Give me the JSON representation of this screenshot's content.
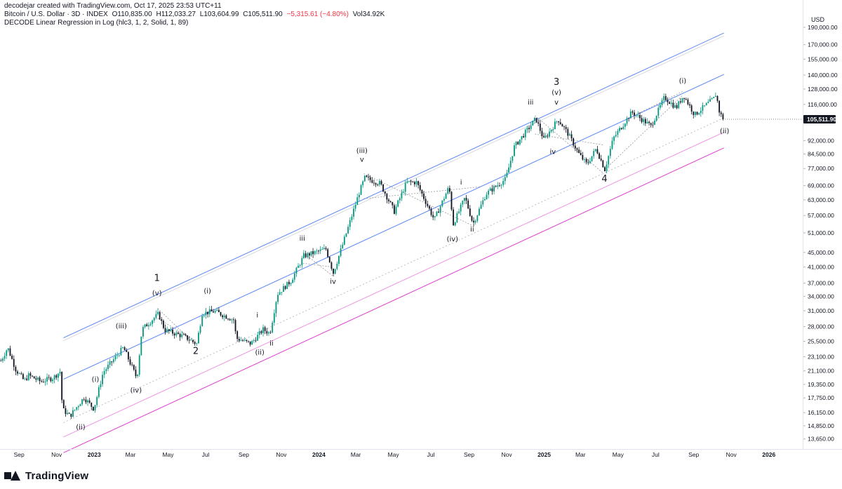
{
  "header": {
    "credit": "decodejar created with TradingView.com, Oct 17, 2025 23:53 UTC+11",
    "symbol": "Bitcoin / U.S. Dollar · 3D · INDEX",
    "open": "O110,835.00",
    "high": "H112,033.27",
    "low": "L103,604.99",
    "close": "C105,511.90",
    "change": "−5,315.61 (−4.80%)",
    "volume": "Vol34.92K",
    "indicator": "DECODE Linear Regression in Log (hlc3, 1, 2, Solid, 1, 89)"
  },
  "footer": {
    "brand": "TradingView"
  },
  "chart_data": {
    "type": "candlestick",
    "currency": "USD",
    "y_scale": "log",
    "ylim": [
      12800,
      205000
    ],
    "y_ticks": [
      190000,
      170000,
      155000,
      140000,
      128000,
      116000,
      92000,
      84500,
      77000,
      69000,
      63000,
      57000,
      51000,
      45000,
      41000,
      37000,
      34000,
      31000,
      28000,
      25500,
      23100,
      21100,
      19350,
      17750,
      16150,
      14850,
      13650
    ],
    "y_tick_labels": [
      "190,000.00",
      "170,000.00",
      "155,000.00",
      "140,000.00",
      "128,000.00",
      "116,000.00",
      "92,000.00",
      "84,500.00",
      "77,000.00",
      "69,000.00",
      "63,000.00",
      "57,000.00",
      "51,000.00",
      "45,000.00",
      "41,000.00",
      "37,000.00",
      "34,000.00",
      "31,000.00",
      "28,000.00",
      "25,500.00",
      "23,100.00",
      "21,100.00",
      "19,350.00",
      "17,750.00",
      "16,150.00",
      "14,850.00",
      "13,650.00"
    ],
    "last_price": 105511.9,
    "last_price_label": "105,511.90",
    "xlim": [
      "2022-08-01",
      "2026-02-25"
    ],
    "x_ticks": [
      {
        "date": "2022-09-01",
        "label": "Sep",
        "bold": false
      },
      {
        "date": "2022-11-01",
        "label": "Nov",
        "bold": false
      },
      {
        "date": "2023-01-01",
        "label": "2023",
        "bold": true
      },
      {
        "date": "2023-03-01",
        "label": "Mar",
        "bold": false
      },
      {
        "date": "2023-05-01",
        "label": "May",
        "bold": false
      },
      {
        "date": "2023-07-01",
        "label": "Jul",
        "bold": false
      },
      {
        "date": "2023-09-01",
        "label": "Sep",
        "bold": false
      },
      {
        "date": "2023-11-01",
        "label": "Nov",
        "bold": false
      },
      {
        "date": "2024-01-01",
        "label": "2024",
        "bold": true
      },
      {
        "date": "2024-03-01",
        "label": "Mar",
        "bold": false
      },
      {
        "date": "2024-05-01",
        "label": "May",
        "bold": false
      },
      {
        "date": "2024-07-01",
        "label": "Jul",
        "bold": false
      },
      {
        "date": "2024-09-01",
        "label": "Sep",
        "bold": false
      },
      {
        "date": "2024-11-01",
        "label": "Nov",
        "bold": false
      },
      {
        "date": "2025-01-01",
        "label": "2025",
        "bold": true
      },
      {
        "date": "2025-03-01",
        "label": "Mar",
        "bold": false
      },
      {
        "date": "2025-05-01",
        "label": "May",
        "bold": false
      },
      {
        "date": "2025-07-01",
        "label": "Jul",
        "bold": false
      },
      {
        "date": "2025-09-01",
        "label": "Sep",
        "bold": false
      },
      {
        "date": "2025-11-01",
        "label": "Nov",
        "bold": false
      },
      {
        "date": "2026-01-01",
        "label": "2026",
        "bold": true
      }
    ],
    "path_keypoints": [
      [
        "2022-08-01",
        22500
      ],
      [
        "2022-08-12",
        24500
      ],
      [
        "2022-08-25",
        21300
      ],
      [
        "2022-09-08",
        19800
      ],
      [
        "2022-09-15",
        20500
      ],
      [
        "2022-10-05",
        19700
      ],
      [
        "2022-10-25",
        20200
      ],
      [
        "2022-11-05",
        21000
      ],
      [
        "2022-11-09",
        16500
      ],
      [
        "2022-11-21",
        15800
      ],
      [
        "2022-12-05",
        17000
      ],
      [
        "2022-12-14",
        17800
      ],
      [
        "2022-12-30",
        16550
      ],
      [
        "2023-01-14",
        20900
      ],
      [
        "2023-02-16",
        24500
      ],
      [
        "2023-03-10",
        20100
      ],
      [
        "2023-03-18",
        27500
      ],
      [
        "2023-04-14",
        30400
      ],
      [
        "2023-04-24",
        27400
      ],
      [
        "2023-05-25",
        26300
      ],
      [
        "2023-06-15",
        25100
      ],
      [
        "2023-06-24",
        30500
      ],
      [
        "2023-07-14",
        30900
      ],
      [
        "2023-08-15",
        29200
      ],
      [
        "2023-08-18",
        26000
      ],
      [
        "2023-09-11",
        25100
      ],
      [
        "2023-10-01",
        27500
      ],
      [
        "2023-10-12",
        26800
      ],
      [
        "2023-10-24",
        34500
      ],
      [
        "2023-11-15",
        37500
      ],
      [
        "2023-12-06",
        44000
      ],
      [
        "2024-01-11",
        46000
      ],
      [
        "2024-01-23",
        39500
      ],
      [
        "2024-02-14",
        51500
      ],
      [
        "2024-03-05",
        66000
      ],
      [
        "2024-03-14",
        72500
      ],
      [
        "2024-04-08",
        70000
      ],
      [
        "2024-05-01",
        58500
      ],
      [
        "2024-05-21",
        70500
      ],
      [
        "2024-06-06",
        70500
      ],
      [
        "2024-07-05",
        55500
      ],
      [
        "2024-07-29",
        68500
      ],
      [
        "2024-08-05",
        54000
      ],
      [
        "2024-08-24",
        64000
      ],
      [
        "2024-09-06",
        54000
      ],
      [
        "2024-09-27",
        65500
      ],
      [
        "2024-10-29",
        72000
      ],
      [
        "2024-11-12",
        88500
      ],
      [
        "2024-12-05",
        99500
      ],
      [
        "2024-12-17",
        106000
      ],
      [
        "2024-12-30",
        92500
      ],
      [
        "2025-01-22",
        105500
      ],
      [
        "2025-02-06",
        97000
      ],
      [
        "2025-02-26",
        84000
      ],
      [
        "2025-03-10",
        79000
      ],
      [
        "2025-03-25",
        87500
      ],
      [
        "2025-04-08",
        76500
      ],
      [
        "2025-04-22",
        93500
      ],
      [
        "2025-05-22",
        110500
      ],
      [
        "2025-06-22",
        101000
      ],
      [
        "2025-07-14",
        121500
      ],
      [
        "2025-08-02",
        113500
      ],
      [
        "2025-08-14",
        123000
      ],
      [
        "2025-09-01",
        108500
      ],
      [
        "2025-10-03",
        121000
      ],
      [
        "2025-10-06",
        125000
      ],
      [
        "2025-10-10",
        112000
      ],
      [
        "2025-10-17",
        105511.9
      ]
    ],
    "overlays": {
      "regression_channel": {
        "start_date": "2022-11-12",
        "end_date": "2025-10-20",
        "center_start": 15150,
        "center_end": 106500,
        "upper_factors": [
          1.72,
          1.32
        ],
        "lower_factors": [
          1.0,
          0.825
        ],
        "ghost_extension_factor": 1.32,
        "upper_color": "#5b87f7",
        "lower_color": "#e040d0"
      },
      "wedges": [
        [
          [
            "2023-04-14",
            31500
          ],
          [
            "2023-06-15",
            24900
          ],
          [
            "2023-04-14",
            29500
          ],
          [
            "2023-06-15",
            25600
          ]
        ],
        [
          [
            "2023-12-06",
            45000
          ],
          [
            "2024-01-23",
            38800
          ],
          [
            "2023-12-06",
            42000
          ],
          [
            "2024-01-23",
            41000
          ]
        ],
        [
          [
            "2024-03-14",
            74500
          ],
          [
            "2024-09-06",
            53500
          ],
          [
            "2024-03-14",
            63500
          ],
          [
            "2024-09-20",
            68500
          ]
        ],
        [
          [
            "2024-12-17",
            108000
          ],
          [
            "2025-04-08",
            74500
          ],
          [
            "2024-12-17",
            96000
          ],
          [
            "2025-04-08",
            89500
          ]
        ],
        [
          [
            "2025-04-08",
            76000
          ],
          [
            "2025-08-14",
            123000
          ],
          [
            "2025-05-22",
            107000
          ],
          [
            "2025-08-14",
            126000
          ]
        ]
      ]
    },
    "annotations": [
      {
        "text": "1",
        "date": "2023-04-13",
        "price": 37500,
        "size": "lg"
      },
      {
        "text": "(v)",
        "date": "2023-04-13",
        "price": 34200,
        "size": "md"
      },
      {
        "text": "(iii)",
        "date": "2023-02-14",
        "price": 27700,
        "size": "md"
      },
      {
        "text": "(i)",
        "date": "2023-01-03",
        "price": 19700,
        "size": "md"
      },
      {
        "text": "(iv)",
        "date": "2023-03-10",
        "price": 18350,
        "size": "md"
      },
      {
        "text": "(ii)",
        "date": "2022-12-10",
        "price": 14500,
        "size": "md"
      },
      {
        "text": "2",
        "date": "2023-06-15",
        "price": 23500,
        "size": "lg"
      },
      {
        "text": "(i)",
        "date": "2023-07-04",
        "price": 34700,
        "size": "md"
      },
      {
        "text": "i",
        "date": "2023-09-23",
        "price": 29700,
        "size": "md"
      },
      {
        "text": "(ii)",
        "date": "2023-09-27",
        "price": 23400,
        "size": "md"
      },
      {
        "text": "ii",
        "date": "2023-10-16",
        "price": 24800,
        "size": "md"
      },
      {
        "text": "iii",
        "date": "2023-12-05",
        "price": 48500,
        "size": "md"
      },
      {
        "text": "iv",
        "date": "2024-01-24",
        "price": 36800,
        "size": "md"
      },
      {
        "text": "(iii)",
        "date": "2024-03-11",
        "price": 85000,
        "size": "md"
      },
      {
        "text": "v",
        "date": "2024-03-11",
        "price": 80500,
        "size": "md"
      },
      {
        "text": "i",
        "date": "2024-08-19",
        "price": 69500,
        "size": "md"
      },
      {
        "text": "(iv)",
        "date": "2024-08-05",
        "price": 48300,
        "size": "md"
      },
      {
        "text": "ii",
        "date": "2024-09-06",
        "price": 51500,
        "size": "md"
      },
      {
        "text": "iii",
        "date": "2024-12-10",
        "price": 116000,
        "size": "md"
      },
      {
        "text": "3",
        "date": "2025-01-21",
        "price": 131500,
        "size": "lg"
      },
      {
        "text": "(v)",
        "date": "2025-01-21",
        "price": 123500,
        "size": "md"
      },
      {
        "text": "v",
        "date": "2025-01-21",
        "price": 116000,
        "size": "md"
      },
      {
        "text": "iv",
        "date": "2025-01-15",
        "price": 84500,
        "size": "md"
      },
      {
        "text": "4",
        "date": "2025-04-09",
        "price": 70800,
        "size": "lg"
      },
      {
        "text": "(i)",
        "date": "2025-08-14",
        "price": 132800,
        "size": "md"
      },
      {
        "text": "(ii)",
        "date": "2025-10-21",
        "price": 96500,
        "size": "md"
      }
    ]
  }
}
